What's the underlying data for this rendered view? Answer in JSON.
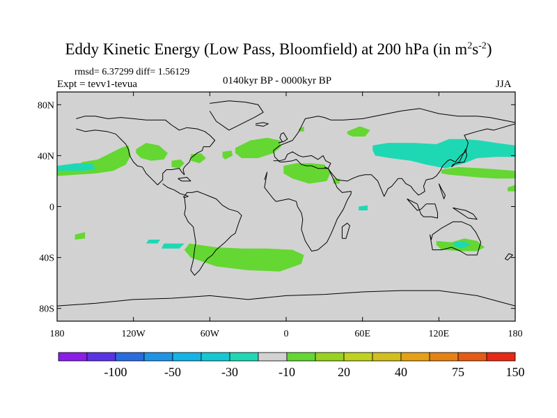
{
  "title": {
    "main": "Eddy Kinetic Energy (Low Pass, Bloomfield) at 200 hPa (in m",
    "sup1": "2",
    "s": "s",
    "sup2": "-2",
    "close": ")"
  },
  "stats": "rmsd= 6.37299  diff= 1.56129",
  "experiment": "Expt = tevv1-tevua",
  "period": "0140kyr BP - 0000kyr BP",
  "season": "JJA",
  "axes": {
    "lat_ticks": [
      {
        "label": "80N",
        "value": 80
      },
      {
        "label": "40N",
        "value": 40
      },
      {
        "label": "0",
        "value": 0
      },
      {
        "label": "40S",
        "value": -40
      },
      {
        "label": "80S",
        "value": -80
      }
    ],
    "lon_ticks": [
      {
        "label": "180",
        "value": -180
      },
      {
        "label": "120W",
        "value": -120
      },
      {
        "label": "60W",
        "value": -60
      },
      {
        "label": "0",
        "value": 0
      },
      {
        "label": "60E",
        "value": 60
      },
      {
        "label": "120E",
        "value": 120
      },
      {
        "label": "180",
        "value": 180
      }
    ]
  },
  "colorbar": {
    "colors": [
      "#8a1ee8",
      "#5a32e6",
      "#2a6ce0",
      "#1e94e6",
      "#14b4e6",
      "#14c8d2",
      "#1ed8b4",
      "#d2d2d2",
      "#64d732",
      "#96d21e",
      "#bed21e",
      "#d2be1e",
      "#e6a014",
      "#e68214",
      "#e65a14",
      "#e62814"
    ],
    "labels": [
      {
        "text": "-100",
        "boundary": 2
      },
      {
        "text": "-50",
        "boundary": 4
      },
      {
        "text": "-30",
        "boundary": 6
      },
      {
        "text": "-10",
        "boundary": 8
      },
      {
        "text": "20",
        "boundary": 10
      },
      {
        "text": "40",
        "boundary": 12
      },
      {
        "text": "75",
        "boundary": 14
      },
      {
        "text": "150",
        "boundary": 16
      }
    ]
  },
  "field_colors": {
    "background": "#d2d2d2",
    "positive": "#64d732",
    "negative": "#1ed8b4"
  },
  "anomalies": [
    {
      "sign": "pos",
      "lon": [
        -180,
        -170,
        -160,
        -148,
        -140,
        -130,
        -124,
        -122,
        -126,
        -136,
        -150,
        -165,
        -180
      ],
      "lat": [
        28,
        30,
        35,
        37,
        41,
        46,
        48,
        40,
        33,
        28,
        26,
        25,
        24
      ]
    },
    {
      "sign": "neg",
      "lon": [
        -180,
        -165,
        -152,
        -150,
        -160,
        -175,
        -180
      ],
      "lat": [
        32,
        34,
        34,
        29,
        28,
        28,
        28
      ]
    },
    {
      "sign": "pos",
      "lon": [
        -118,
        -110,
        -100,
        -93,
        -96,
        -106,
        -114,
        -118
      ],
      "lat": [
        45,
        50,
        48,
        42,
        37,
        36,
        38,
        42
      ]
    },
    {
      "sign": "pos",
      "lon": [
        -90,
        -83,
        -80,
        -84,
        -90
      ],
      "lat": [
        36,
        37,
        34,
        30,
        31
      ]
    },
    {
      "sign": "pos",
      "lon": [
        -75,
        -67,
        -63,
        -68,
        -75
      ],
      "lat": [
        41,
        42,
        38,
        34,
        36
      ]
    },
    {
      "sign": "pos",
      "lon": [
        -50,
        -43,
        -42,
        -48,
        -50
      ],
      "lat": [
        43,
        44,
        40,
        37,
        39
      ]
    },
    {
      "sign": "pos",
      "lon": [
        -40,
        -28,
        -15,
        -5,
        -4,
        -10,
        -22,
        -35,
        -40
      ],
      "lat": [
        46,
        52,
        54,
        52,
        47,
        42,
        38,
        38,
        42
      ]
    },
    {
      "sign": "pos",
      "lon": [
        -2,
        8,
        20,
        30,
        35,
        32,
        18,
        5,
        -2
      ],
      "lat": [
        32,
        34,
        34,
        33,
        27,
        20,
        18,
        22,
        26
      ]
    },
    {
      "sign": "pos",
      "lon": [
        10,
        14,
        14,
        10
      ],
      "lat": [
        61,
        63,
        59,
        59
      ]
    },
    {
      "sign": "pos",
      "lon": [
        37,
        42,
        42,
        37
      ],
      "lat": [
        22,
        22,
        18,
        18
      ]
    },
    {
      "sign": "pos",
      "lon": [
        48,
        58,
        66,
        62,
        52,
        48
      ],
      "lat": [
        59,
        63,
        60,
        55,
        55,
        57
      ]
    },
    {
      "sign": "neg",
      "lon": [
        68,
        80,
        100,
        118,
        128,
        140,
        152,
        165,
        180,
        180,
        165,
        150,
        140,
        125,
        110,
        98,
        82,
        70,
        68
      ],
      "lat": [
        48,
        50,
        50,
        49,
        53,
        53,
        52,
        50,
        48,
        39,
        39,
        38,
        34,
        30,
        33,
        36,
        38,
        40,
        44
      ]
    },
    {
      "sign": "pos",
      "lon": [
        122,
        135,
        155,
        168,
        180,
        180,
        165,
        150,
        128,
        122
      ],
      "lat": [
        29,
        31,
        30,
        29,
        28,
        22,
        22,
        23,
        25,
        26
      ]
    },
    {
      "sign": "pos",
      "lon": [
        174,
        180,
        180,
        174
      ],
      "lat": [
        15,
        17,
        12,
        12
      ]
    },
    {
      "sign": "neg",
      "lon": [
        57,
        64,
        64,
        57
      ],
      "lat": [
        0,
        1,
        -3,
        -3
      ]
    },
    {
      "sign": "pos",
      "lon": [
        -166,
        -158,
        -158,
        -166
      ],
      "lat": [
        -22,
        -20,
        -25,
        -26
      ]
    },
    {
      "sign": "neg",
      "lon": [
        -96,
        -80,
        -84,
        -98
      ],
      "lat": [
        -29,
        -29,
        -33,
        -33
      ]
    },
    {
      "sign": "neg",
      "lon": [
        -108,
        -99,
        -101,
        -110
      ],
      "lat": [
        -26,
        -26,
        -29,
        -29
      ]
    },
    {
      "sign": "pos",
      "lon": [
        -76,
        -55,
        -35,
        -15,
        5,
        14,
        12,
        -5,
        -30,
        -55,
        -75,
        -80
      ],
      "lat": [
        -29,
        -32,
        -33,
        -33,
        -34,
        -38,
        -45,
        -51,
        -50,
        -47,
        -40,
        -34
      ]
    },
    {
      "sign": "pos",
      "lon": [
        118,
        130,
        140,
        150,
        156,
        150,
        138,
        122,
        118
      ],
      "lat": [
        -27,
        -28,
        -25,
        -27,
        -32,
        -35,
        -35,
        -34,
        -30
      ]
    },
    {
      "sign": "neg",
      "lon": [
        132,
        140,
        145,
        138,
        132
      ],
      "lat": [
        -28,
        -27,
        -30,
        -33,
        -31
      ]
    }
  ],
  "coastlines": [
    {
      "lon": [
        -165,
        -158,
        -150,
        -141,
        -134,
        -130,
        -126,
        -124,
        -123,
        -120,
        -117,
        -113,
        -110,
        -106,
        -101,
        -97,
        -97,
        -94,
        -90,
        -84,
        -82,
        -80,
        -81,
        -80,
        -76,
        -75,
        -70,
        -66,
        -65,
        -60,
        -56,
        -60,
        -64,
        -70,
        -78,
        -84,
        -90,
        -95,
        -100,
        -110,
        -120,
        -130,
        -140,
        -150,
        -158,
        -165
      ],
      "lat": [
        61,
        59,
        60,
        59,
        57,
        53,
        49,
        45,
        40,
        35,
        32,
        31,
        26,
        22,
        17,
        21,
        26,
        29,
        29,
        30,
        27,
        25,
        29,
        31,
        35,
        38,
        42,
        44,
        47,
        47,
        52,
        56,
        59,
        61,
        62,
        60,
        64,
        68,
        68,
        68,
        69,
        70,
        69,
        71,
        71,
        69
      ]
    },
    {
      "lon": [
        -97,
        -93,
        -88,
        -83,
        -79,
        -77,
        -80,
        -81
      ],
      "lat": [
        18,
        15,
        13,
        10,
        9,
        8,
        7,
        8
      ]
    },
    {
      "lon": [
        -80,
        -78,
        -74,
        -70,
        -65,
        -60,
        -55,
        -50,
        -45,
        -38,
        -35,
        -37,
        -40,
        -43,
        -48,
        -55,
        -58,
        -62,
        -65,
        -68,
        -72,
        -75,
        -73,
        -72,
        -71,
        -73,
        -77,
        -80,
        -79,
        -80
      ],
      "lat": [
        8,
        11,
        11,
        12,
        10,
        8,
        6,
        1,
        -2,
        -4,
        -7,
        -12,
        -21,
        -23,
        -28,
        -34,
        -38,
        -41,
        -45,
        -50,
        -54,
        -50,
        -42,
        -34,
        -28,
        -16,
        -12,
        -6,
        -1,
        8
      ]
    },
    {
      "lon": [
        -60,
        -45,
        -32,
        -22,
        -18,
        -25,
        -45,
        -55,
        -60
      ],
      "lat": [
        81,
        83,
        82,
        80,
        74,
        70,
        60,
        67,
        75
      ]
    },
    {
      "lon": [
        -10,
        -5,
        -1,
        1,
        5,
        10,
        13,
        20,
        25,
        29,
        31,
        35,
        33,
        25,
        20,
        16,
        12,
        8,
        5,
        -2,
        -5,
        -9,
        -10
      ],
      "lat": [
        36,
        36,
        37,
        41,
        43,
        40,
        39,
        40,
        37,
        40,
        36,
        34,
        30,
        30,
        32,
        32,
        33,
        37,
        36,
        35,
        35,
        39,
        44
      ]
    },
    {
      "lon": [
        -17,
        -15,
        -17,
        -10,
        -8,
        -3,
        2,
        8,
        9,
        12,
        13,
        12,
        15,
        20,
        25,
        32,
        35,
        38,
        40,
        45,
        48,
        51,
        51,
        44,
        40,
        36,
        33,
        30
      ],
      "lat": [
        21,
        27,
        15,
        6,
        4,
        5,
        6,
        4,
        0,
        -5,
        -10,
        -18,
        -27,
        -35,
        -34,
        -28,
        -22,
        -15,
        -10,
        -2,
        5,
        10,
        12,
        11,
        15,
        24,
        30,
        31
      ]
    },
    {
      "lon": [
        -10,
        -5,
        0,
        5,
        8,
        10,
        12,
        15,
        20,
        25,
        30,
        35,
        45,
        60,
        75,
        90,
        105,
        120,
        135,
        150,
        160,
        170,
        180
      ],
      "lat": [
        44,
        48,
        50,
        52,
        56,
        59,
        63,
        69,
        70,
        71,
        70,
        68,
        68,
        69,
        72,
        75,
        77,
        73,
        71,
        71,
        70,
        68,
        66
      ]
    },
    {
      "lon": [
        30,
        33,
        35,
        40,
        48,
        52,
        57,
        62,
        67,
        72,
        77,
        80,
        83,
        88,
        91,
        94,
        98,
        100,
        104,
        106,
        109,
        108,
        110,
        115,
        118,
        121,
        123,
        127,
        129,
        133,
        137,
        141,
        143,
        140,
        150,
        158,
        163,
        180
      ],
      "lat": [
        31,
        30,
        27,
        21,
        20,
        22,
        24,
        25,
        25,
        20,
        8,
        14,
        16,
        22,
        22,
        18,
        16,
        13,
        9,
        10,
        12,
        16,
        21,
        22,
        24,
        28,
        32,
        36,
        37,
        35,
        40,
        43,
        50,
        56,
        59,
        61,
        60,
        65
      ]
    },
    {
      "lon": [
        113,
        115,
        122,
        130,
        137,
        142,
        145,
        150,
        153,
        149,
        145,
        138,
        131,
        122,
        115,
        114,
        113
      ],
      "lat": [
        -22,
        -34,
        -34,
        -32,
        -35,
        -38,
        -38,
        -38,
        -28,
        -20,
        -15,
        -12,
        -12,
        -17,
        -22,
        -26,
        -22
      ]
    },
    {
      "lon": [
        -6,
        -3,
        -5,
        -4,
        -2,
        1,
        -2,
        -6
      ],
      "lat": [
        50,
        51,
        54,
        57,
        58,
        53,
        51,
        50
      ]
    },
    {
      "lon": [
        -24,
        -18,
        -14,
        -18,
        -24
      ],
      "lat": [
        65,
        66,
        65,
        63,
        64
      ]
    },
    {
      "lon": [
        44,
        47,
        50,
        48,
        44,
        44
      ],
      "lat": [
        -25,
        -25,
        -15,
        -13,
        -16,
        -25
      ]
    },
    {
      "lon": [
        130,
        133,
        140,
        142,
        141,
        136,
        131,
        130
      ],
      "lat": [
        31,
        34,
        35,
        40,
        45,
        35,
        33,
        31
      ]
    },
    {
      "lon": [
        95,
        103,
        106,
        108,
        114,
        119,
        119,
        117,
        110,
        106,
        103,
        95
      ],
      "lat": [
        6,
        2,
        -6,
        -8,
        -8,
        -9,
        -5,
        2,
        2,
        -2,
        -3,
        6
      ]
    },
    {
      "lon": [
        131,
        136,
        141,
        147,
        150,
        143,
        137,
        131
      ],
      "lat": [
        -1,
        -2,
        -3,
        -6,
        -10,
        -9,
        -5,
        -1
      ]
    },
    {
      "lon": [
        172,
        175,
        178,
        174,
        172
      ],
      "lat": [
        -41,
        -37,
        -38,
        -42,
        -41
      ]
    },
    {
      "lon": [
        -180,
        -150,
        -120,
        -90,
        -60,
        -30,
        0,
        30,
        60,
        90,
        120,
        150,
        180
      ],
      "lat": [
        -78,
        -76,
        -73,
        -72,
        -70,
        -73,
        -70,
        -69,
        -67,
        -66,
        -66,
        -70,
        -78
      ]
    },
    {
      "lon": [
        -85,
        -78,
        -75,
        -82,
        -85
      ],
      "lat": [
        22,
        23,
        20,
        20,
        22
      ]
    },
    {
      "lon": [
        120,
        122,
        125,
        124,
        122,
        120
      ],
      "lat": [
        18,
        14,
        9,
        6,
        12,
        18
      ]
    }
  ]
}
